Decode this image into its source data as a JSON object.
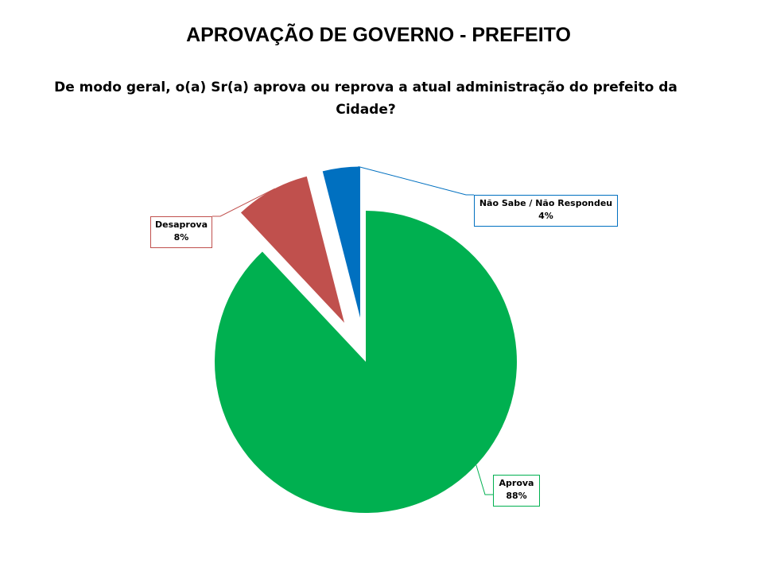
{
  "page": {
    "title": "APROVAÇÃO DE GOVERNO - PREFEITO",
    "question_line1": "De modo geral, o(a) Sr(a) aprova ou reprova a atual administração do prefeito da",
    "question_line2": "Cidade?"
  },
  "chart_data": {
    "type": "pie",
    "slices": [
      {
        "label": "Aprova",
        "value": 88,
        "display": "88%",
        "color": "#00b050"
      },
      {
        "label": "Desaprova",
        "value": 8,
        "display": "8%",
        "color": "#c0504d"
      },
      {
        "label": "Não Sabe / Não Respondeu",
        "value": 4,
        "display": "4%",
        "color": "#0070c0"
      }
    ],
    "start": "12 o'clock",
    "direction": "clockwise",
    "exploded": true,
    "legend": "none"
  }
}
